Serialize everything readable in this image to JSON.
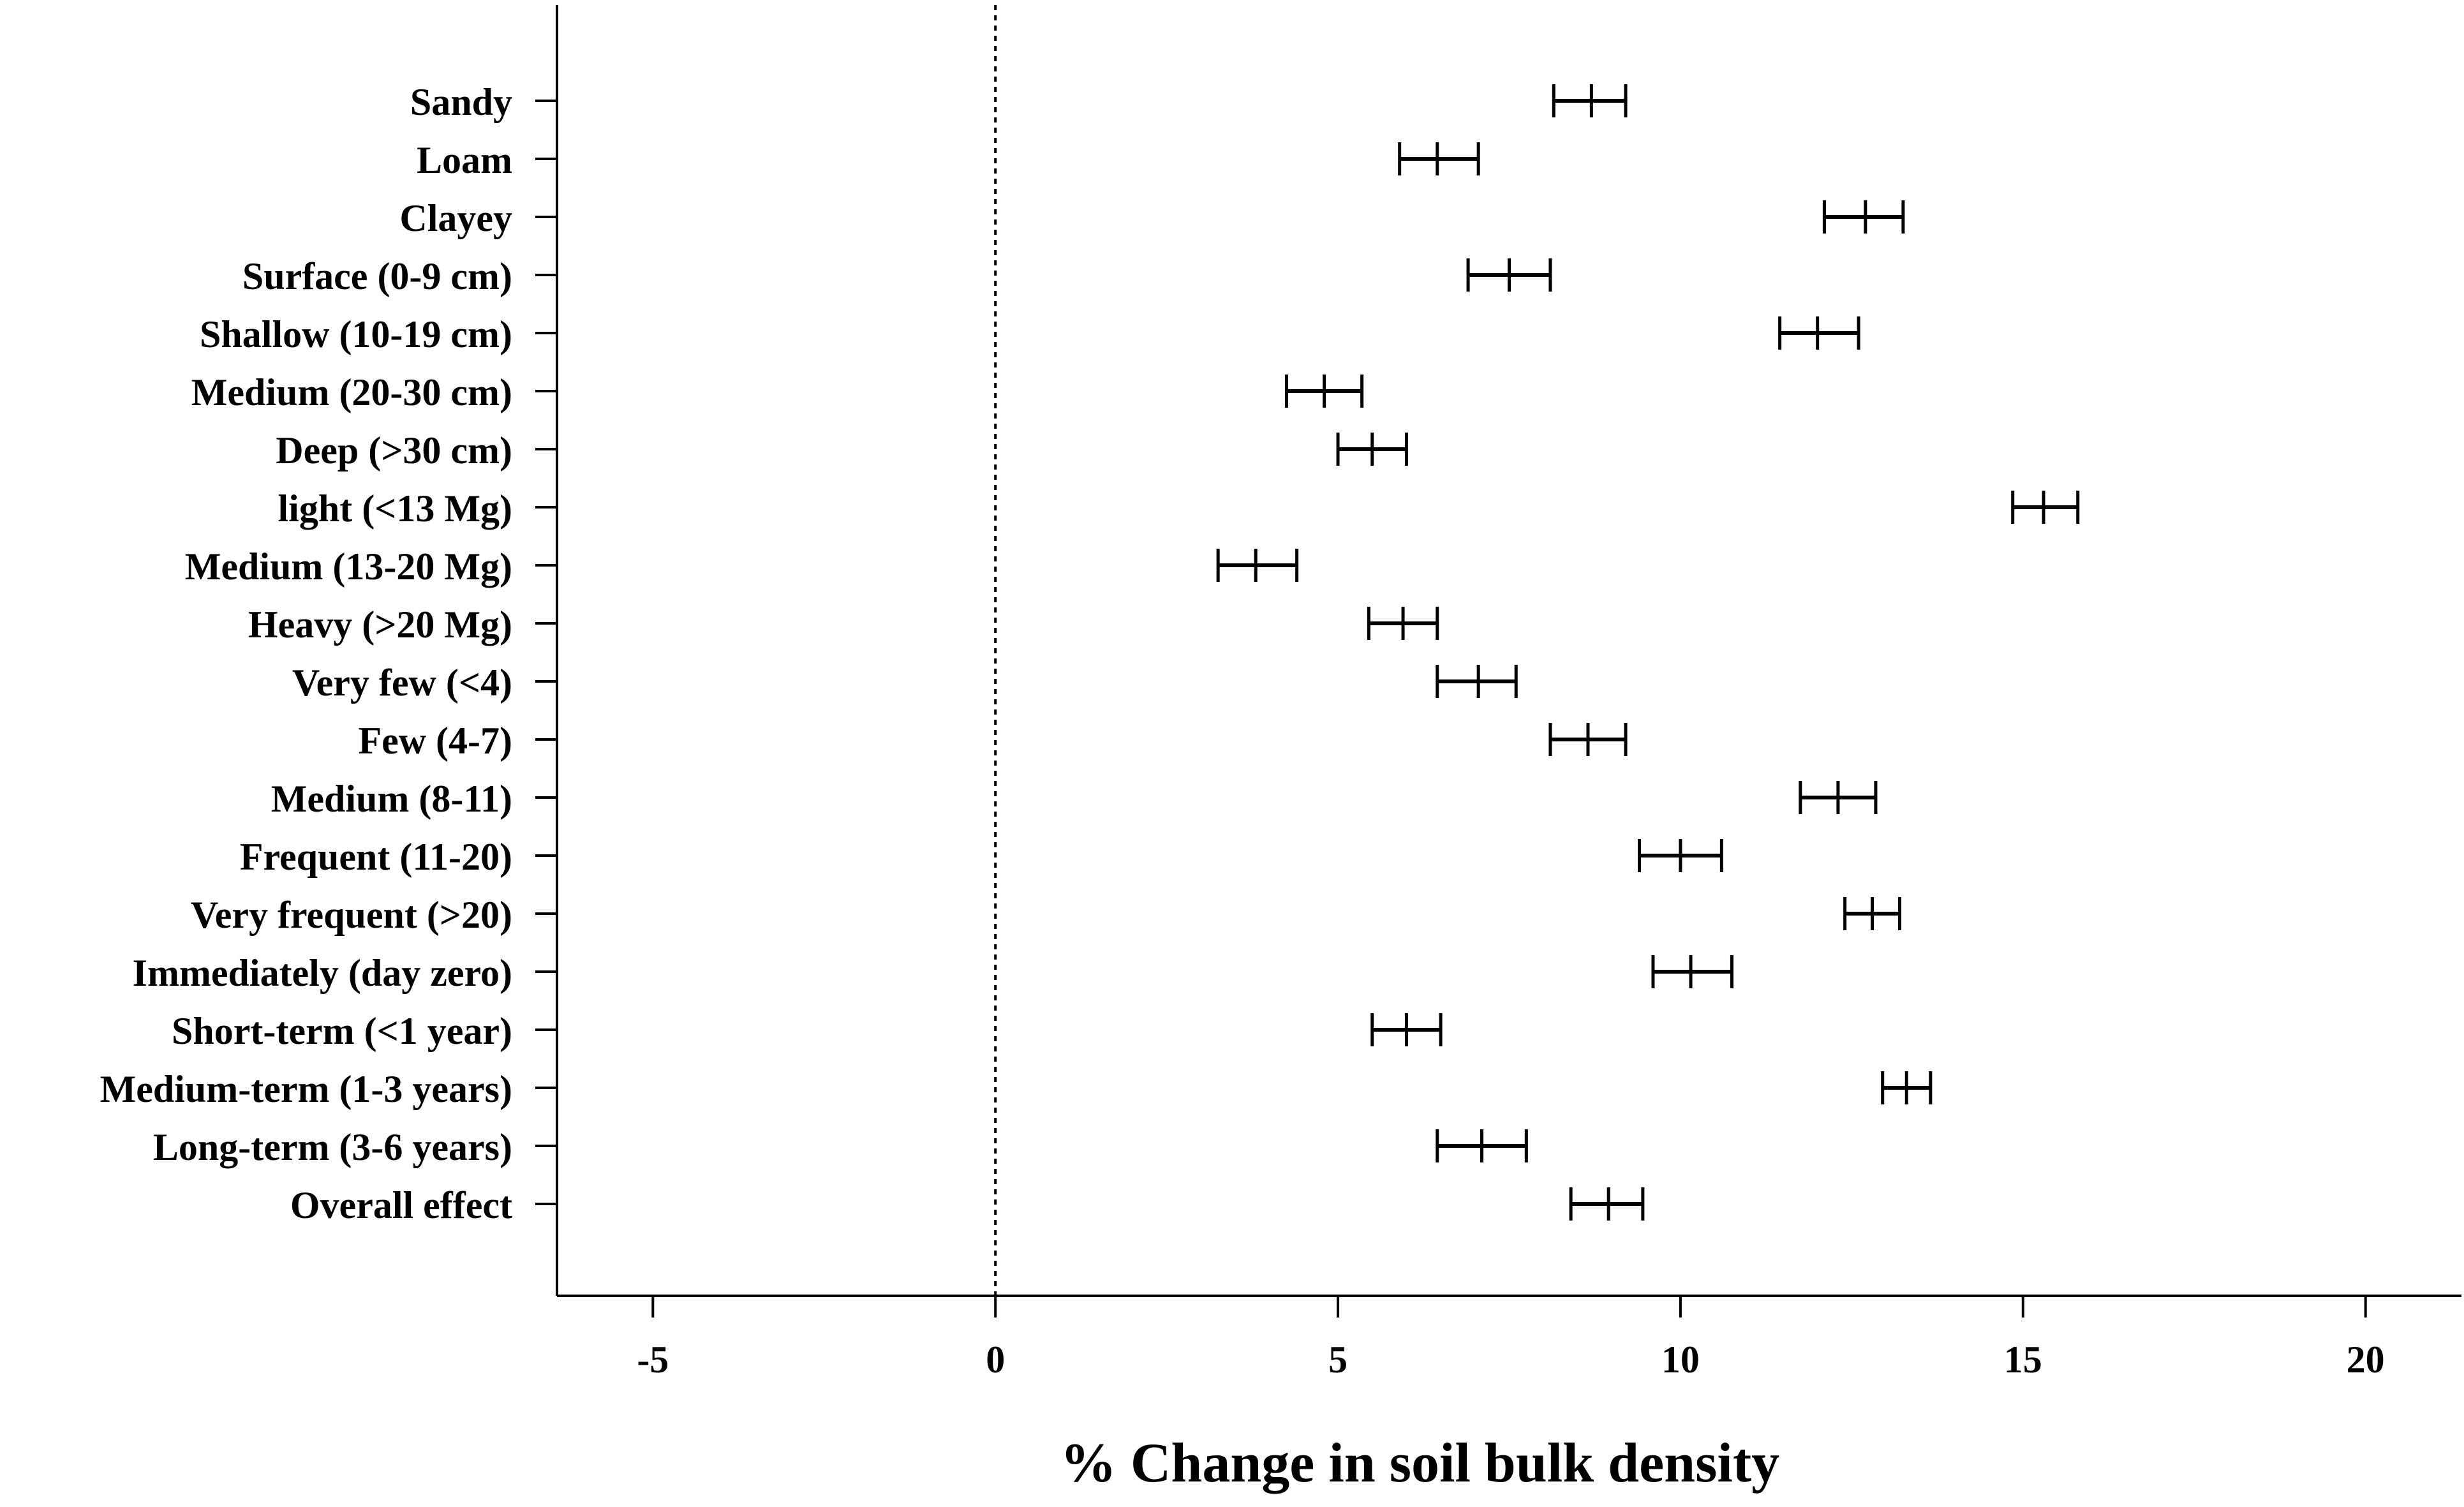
{
  "chart_data": {
    "type": "forest",
    "xlabel": "% Change in soil bulk density",
    "ylabel": "",
    "title": "",
    "xlim": [
      -6.4,
      21.4
    ],
    "xticks": [
      -5,
      0,
      5,
      10,
      15,
      20
    ],
    "xtick_labels": [
      "-5",
      "0",
      "5",
      "10",
      "15",
      "20"
    ],
    "reference_line": 0,
    "grid": false,
    "colors": {
      "marks": "#000000",
      "axis": "#000000",
      "background": "#ffffff"
    },
    "rows": [
      {
        "label": "Sandy",
        "mean": 8.7,
        "lower": 8.15,
        "upper": 9.2
      },
      {
        "label": "Loam",
        "mean": 6.45,
        "lower": 5.9,
        "upper": 7.05
      },
      {
        "label": "Clayey",
        "mean": 12.7,
        "lower": 12.1,
        "upper": 13.25
      },
      {
        "label": "Surface (0-9 cm)",
        "mean": 7.5,
        "lower": 6.9,
        "upper": 8.1
      },
      {
        "label": "Shallow (10-19 cm)",
        "mean": 12.0,
        "lower": 11.45,
        "upper": 12.6
      },
      {
        "label": "Medium (20-30 cm)",
        "mean": 4.8,
        "lower": 4.25,
        "upper": 5.35
      },
      {
        "label": "Deep (>30 cm)",
        "mean": 5.5,
        "lower": 5.0,
        "upper": 6.0
      },
      {
        "label": "light (<13 Mg)",
        "mean": 15.3,
        "lower": 14.85,
        "upper": 15.8
      },
      {
        "label": "Medium  (13-20 Mg)",
        "mean": 3.8,
        "lower": 3.25,
        "upper": 4.4
      },
      {
        "label": "Heavy (>20 Mg)",
        "mean": 5.95,
        "lower": 5.45,
        "upper": 6.45
      },
      {
        "label": "Very few (<4)",
        "mean": 7.05,
        "lower": 6.45,
        "upper": 7.6
      },
      {
        "label": "Few (4-7)",
        "mean": 8.65,
        "lower": 8.1,
        "upper": 9.2
      },
      {
        "label": "Medium (8-11)",
        "mean": 12.3,
        "lower": 11.75,
        "upper": 12.85
      },
      {
        "label": "Frequent (11-20)",
        "mean": 10.0,
        "lower": 9.4,
        "upper": 10.6
      },
      {
        "label": "Very frequent (>20)",
        "mean": 12.8,
        "lower": 12.4,
        "upper": 13.2
      },
      {
        "label": "Immediately (day zero)",
        "mean": 10.15,
        "lower": 9.6,
        "upper": 10.75
      },
      {
        "label": "Short-term (<1 year)",
        "mean": 6.0,
        "lower": 5.5,
        "upper": 6.5
      },
      {
        "label": "Medium-term (1-3 years)",
        "mean": 13.3,
        "lower": 12.95,
        "upper": 13.65
      },
      {
        "label": "Long-term (3-6 years)",
        "mean": 7.1,
        "lower": 6.45,
        "upper": 7.75
      },
      {
        "label": "Overall effect",
        "mean": 8.95,
        "lower": 8.4,
        "upper": 9.45
      }
    ]
  }
}
